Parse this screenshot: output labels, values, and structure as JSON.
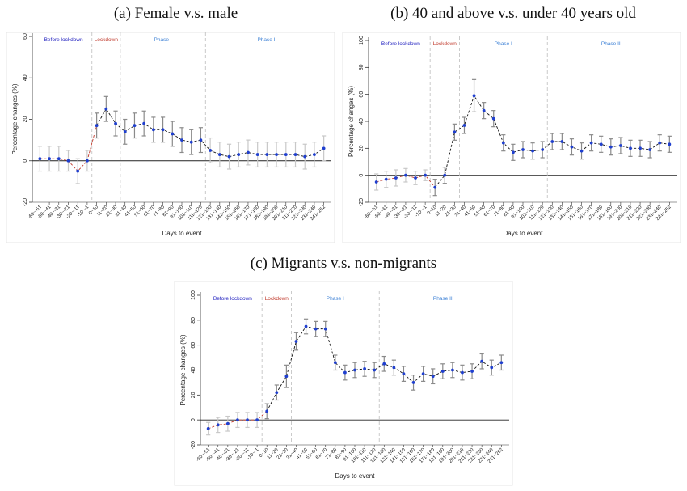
{
  "categories": [
    "-60~-51",
    "-50~-41",
    "-40~-31",
    "-30~-21",
    "-20~-11",
    "-10~-1",
    "0~10",
    "11~20",
    "21~30",
    "31~40",
    "41~50",
    "51~60",
    "61~70",
    "71~80",
    "81~90",
    "91~100",
    "101~110",
    "111~120",
    "121~130",
    "131~140",
    "141~150",
    "151~160",
    "161~170",
    "171~180",
    "181~190",
    "191~200",
    "201~210",
    "211~220",
    "221~230",
    "231~240",
    "241~252"
  ],
  "xlabel": "Days to event",
  "ylabel": "Percentage changes (%)",
  "phase_labels": [
    "Before lockdown",
    "Lockdown",
    "Phase I",
    "Phase II"
  ],
  "colors": {
    "before": "#1f1fbf",
    "lockdown": "#c0392b",
    "phase": "#3a7fd5",
    "point": "#1f3fcf",
    "ci_main": "#8a8a8a",
    "ci_light": "#c8c8c8",
    "pre_line": "#c0392b"
  },
  "chart_data": [
    {
      "title": "(a) Female v.s. male",
      "type": "line",
      "ylim": [
        -20,
        60
      ],
      "yticks": [
        -20,
        0,
        20,
        40,
        60
      ],
      "values": [
        1,
        1,
        1,
        0,
        -5,
        0,
        17,
        25,
        18,
        14,
        17,
        18,
        15,
        15,
        13,
        10,
        9,
        10,
        5,
        3,
        2,
        3,
        4,
        3,
        3,
        3,
        3,
        3,
        2,
        3,
        6
      ],
      "err": [
        6,
        6,
        6,
        5,
        6,
        5,
        6,
        6,
        6,
        6,
        6,
        6,
        6,
        6,
        6,
        6,
        6,
        6,
        6,
        6,
        6,
        6,
        6,
        6,
        6,
        6,
        6,
        6,
        6,
        6,
        6
      ],
      "light_ci": [
        0,
        1,
        2,
        3,
        4,
        5,
        18,
        19,
        20,
        21,
        22,
        23,
        24,
        25,
        26,
        27,
        28,
        29,
        30
      ]
    },
    {
      "title": "(b) 40 and above v.s. under 40 years old",
      "type": "line",
      "ylim": [
        -20,
        100
      ],
      "yticks": [
        -20,
        0,
        20,
        40,
        60,
        80,
        100
      ],
      "values": [
        -5,
        -3,
        -2,
        0,
        -2,
        0,
        -9,
        0,
        32,
        37,
        59,
        48,
        42,
        24,
        17,
        19,
        18,
        19,
        25,
        25,
        21,
        18,
        24,
        23,
        21,
        22,
        20,
        20,
        19,
        24,
        23
      ],
      "err": [
        6,
        6,
        6,
        5,
        5,
        4,
        6,
        6,
        6,
        6,
        12,
        6,
        6,
        6,
        6,
        6,
        6,
        6,
        6,
        6,
        6,
        6,
        6,
        6,
        6,
        6,
        6,
        6,
        6,
        6,
        6
      ],
      "light_ci": [
        0,
        1,
        2,
        3,
        4,
        5
      ]
    },
    {
      "title": "(c) Migrants v.s. non-migrants",
      "type": "line",
      "ylim": [
        -20,
        100
      ],
      "yticks": [
        -20,
        0,
        20,
        40,
        60,
        80,
        100
      ],
      "values": [
        -7,
        -4,
        -3,
        0,
        0,
        0,
        7,
        22,
        35,
        63,
        75,
        73,
        73,
        46,
        38,
        40,
        41,
        40,
        45,
        42,
        37,
        30,
        37,
        35,
        39,
        40,
        38,
        39,
        47,
        42,
        46
      ],
      "err": [
        5,
        6,
        6,
        6,
        6,
        6,
        6,
        6,
        9,
        7,
        6,
        6,
        6,
        6,
        6,
        6,
        6,
        6,
        6,
        6,
        6,
        6,
        6,
        6,
        6,
        6,
        6,
        6,
        6,
        6,
        6
      ],
      "light_ci": [
        0,
        1,
        2,
        3,
        4,
        5
      ]
    }
  ]
}
